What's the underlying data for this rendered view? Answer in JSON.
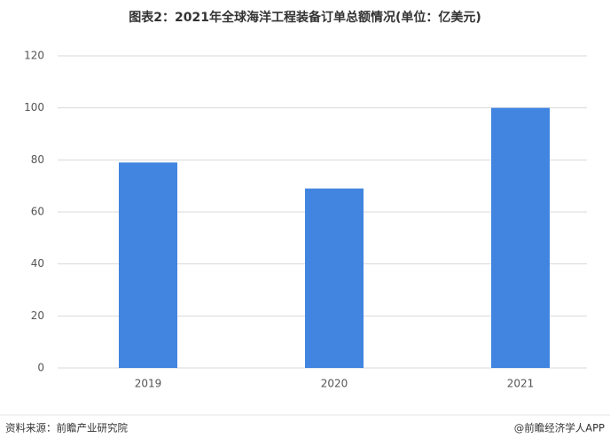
{
  "chart_data": {
    "type": "bar",
    "title": "图表2：2021年全球海洋工程装备订单总额情况(单位：亿美元)",
    "categories": [
      "2019",
      "2020",
      "2021"
    ],
    "values": [
      79,
      69,
      100
    ],
    "color": "#4185e0",
    "ylim": [
      0,
      120
    ],
    "yticks": [
      0,
      20,
      40,
      60,
      80,
      100,
      120
    ],
    "grid": true,
    "source": "资料来源：前瞻产业研究院",
    "credit": "@前瞻经济学人APP"
  }
}
